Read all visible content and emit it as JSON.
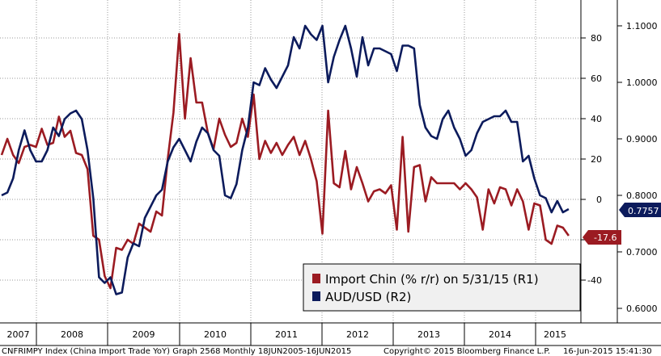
{
  "chart_data": {
    "type": "line",
    "years": [
      "2007",
      "2008",
      "2009",
      "2010",
      "2011",
      "2012",
      "2013",
      "2014",
      "2015"
    ],
    "series": [
      {
        "name": "Import Chin (% r/r) on 5/31/15 (R1)",
        "axis": "R1",
        "color": "#9b1b22",
        "values": [
          22,
          30,
          22,
          18,
          26,
          27,
          26,
          35,
          27,
          28,
          41,
          31,
          34,
          23,
          22,
          15,
          -18,
          -20,
          -38,
          -44,
          -24,
          -25,
          -20,
          -22,
          -12,
          -14,
          -16,
          -6,
          -8,
          20,
          43,
          82,
          40,
          70,
          48,
          48,
          33,
          25,
          40,
          32,
          26,
          28,
          40,
          31,
          52,
          20,
          29,
          23,
          28,
          22,
          27,
          31,
          22,
          29,
          20,
          9,
          -17,
          44,
          8,
          6,
          24,
          5,
          16,
          8,
          -1,
          4,
          5,
          3,
          7,
          -15,
          31,
          -16,
          16,
          17,
          -1,
          11,
          8,
          8,
          8,
          8,
          5,
          8,
          5,
          1,
          -15,
          5,
          -2,
          6,
          5,
          -3,
          5,
          -1,
          -15,
          -2,
          -3,
          -20,
          -22,
          -13,
          -14,
          -18
        ],
        "label": "-17.6"
      },
      {
        "name": "AUD/USD (R2)",
        "axis": "R2",
        "color": "#0c1b5c",
        "values": [
          0.8,
          0.805,
          0.83,
          0.88,
          0.915,
          0.88,
          0.86,
          0.86,
          0.88,
          0.92,
          0.905,
          0.935,
          0.945,
          0.95,
          0.935,
          0.88,
          0.795,
          0.655,
          0.645,
          0.655,
          0.625,
          0.628,
          0.69,
          0.715,
          0.71,
          0.76,
          0.78,
          0.8,
          0.81,
          0.86,
          0.885,
          0.9,
          0.88,
          0.86,
          0.895,
          0.92,
          0.91,
          0.88,
          0.87,
          0.8,
          0.795,
          0.82,
          0.88,
          0.92,
          1.0,
          0.995,
          1.025,
          1.005,
          0.99,
          1.01,
          1.03,
          1.08,
          1.06,
          1.1,
          1.085,
          1.075,
          1.1,
          1.0,
          1.045,
          1.075,
          1.1,
          1.06,
          1.01,
          1.08,
          1.03,
          1.06,
          1.06,
          1.055,
          1.05,
          1.02,
          1.065,
          1.065,
          1.06,
          0.96,
          0.92,
          0.905,
          0.9,
          0.935,
          0.95,
          0.92,
          0.9,
          0.87,
          0.88,
          0.91,
          0.93,
          0.935,
          0.94,
          0.94,
          0.95,
          0.93,
          0.93,
          0.86,
          0.87,
          0.83,
          0.8,
          0.795,
          0.77,
          0.79,
          0.77,
          0.7757
        ],
        "label": "0.7757"
      }
    ],
    "r1_axis": {
      "ticks": [
        -40,
        -20,
        0,
        20,
        40,
        60,
        80
      ],
      "tick_labels": [
        "-40",
        "-20",
        "0",
        "20",
        "40",
        "60",
        "80"
      ],
      "ylim": [
        -48,
        104
      ]
    },
    "r2_axis": {
      "ticks": [
        0.6,
        0.7,
        0.8,
        0.9,
        1.0,
        1.1
      ],
      "tick_labels": [
        "0.6000",
        "0.7000",
        "0.8000",
        "0.9000",
        "1.0000",
        "1.1000"
      ],
      "ylim": [
        0.6,
        1.12
      ]
    },
    "grid": true,
    "legend": {
      "placement": "bottom-right"
    }
  },
  "legend": {
    "series1": "Import Chin (% r/r) on 5/31/15 (R1)",
    "series2": "AUD/USD  (R2)"
  },
  "footer": {
    "left": "CNFRIMPY Index (China Import Trade YoY) Graph 2568  Monthly 18JUN2005-16JUN2015",
    "middle": "Copyright© 2015 Bloomberg Finance L.P.",
    "right": "16-Jun-2015 15:41:30"
  }
}
